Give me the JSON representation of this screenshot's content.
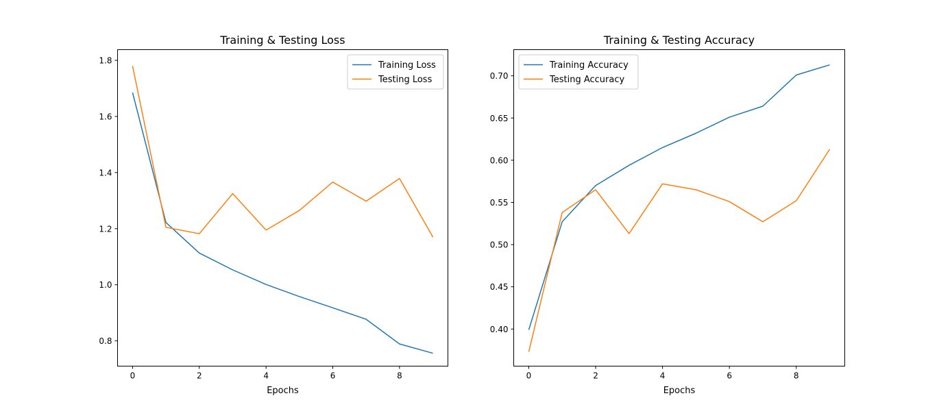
{
  "chart_data": [
    {
      "type": "line",
      "title": "Training & Testing Loss",
      "xlabel": "Epochs",
      "ylabel": "",
      "x": [
        0,
        1,
        2,
        3,
        4,
        5,
        6,
        7,
        8,
        9
      ],
      "xlim": [
        -0.45,
        9.45
      ],
      "ylim": [
        0.71,
        1.838
      ],
      "xticks": [
        0,
        2,
        4,
        6,
        8
      ],
      "yticks": [
        0.8,
        1.0,
        1.2,
        1.4,
        1.6,
        1.8
      ],
      "ytick_labels": [
        "0.8",
        "1.0",
        "1.2",
        "1.4",
        "1.6",
        "1.8"
      ],
      "grid": false,
      "legend_position": "upper right",
      "series": [
        {
          "name": "Training Loss",
          "color": "#1f77b4",
          "values": [
            1.685,
            1.222,
            1.113,
            1.053,
            1.001,
            0.958,
            0.918,
            0.877,
            0.789,
            0.756
          ]
        },
        {
          "name": "Testing Loss",
          "color": "#ff7f0e",
          "values": [
            1.78,
            1.205,
            1.182,
            1.325,
            1.195,
            1.265,
            1.366,
            1.298,
            1.379,
            1.17
          ]
        }
      ]
    },
    {
      "type": "line",
      "title": "Training & Testing Accuracy",
      "xlabel": "Epochs",
      "ylabel": "",
      "x": [
        0,
        1,
        2,
        3,
        4,
        5,
        6,
        7,
        8,
        9
      ],
      "xlim": [
        -0.45,
        9.45
      ],
      "ylim": [
        0.356,
        0.731
      ],
      "xticks": [
        0,
        2,
        4,
        6,
        8
      ],
      "yticks": [
        0.4,
        0.45,
        0.5,
        0.55,
        0.6,
        0.65,
        0.7
      ],
      "ytick_labels": [
        "0.40",
        "0.45",
        "0.50",
        "0.55",
        "0.60",
        "0.65",
        "0.70"
      ],
      "grid": false,
      "legend_position": "upper left",
      "series": [
        {
          "name": "Training Accuracy",
          "color": "#1f77b4",
          "values": [
            0.399,
            0.527,
            0.57,
            0.594,
            0.615,
            0.632,
            0.651,
            0.664,
            0.701,
            0.713
          ]
        },
        {
          "name": "Testing Accuracy",
          "color": "#ff7f0e",
          "values": [
            0.373,
            0.538,
            0.565,
            0.513,
            0.572,
            0.565,
            0.551,
            0.527,
            0.552,
            0.613
          ]
        }
      ]
    }
  ]
}
